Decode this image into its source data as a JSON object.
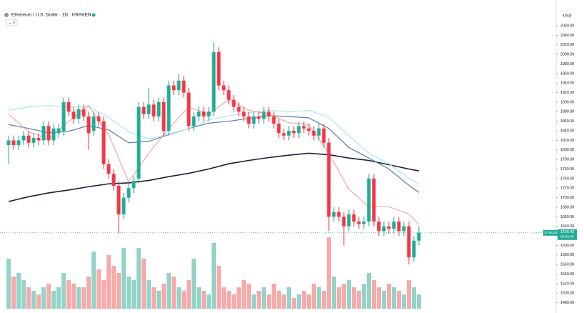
{
  "chart_data": {
    "type": "candlestick",
    "symbol": "Ethereum / U.S. Dollar · 1D · KRAKEN",
    "indicator_count": "2",
    "currency": "USD",
    "ticker": "ETHUSD",
    "countdown": "09:55:36",
    "last_price": 1626.43,
    "up_color": "#22ab94",
    "down_color": "#f23645",
    "up_volume_color": "#93d3c8",
    "down_volume_color": "#f7aaa9",
    "ylim": [
      1466,
      2084
    ],
    "yticks": [
      {
        "value": 2060,
        "label": "2060.00"
      },
      {
        "value": 2040,
        "label": "2040.00"
      },
      {
        "value": 2020,
        "label": "2020.00"
      },
      {
        "value": 2000,
        "label": "2000.00"
      },
      {
        "value": 1980,
        "label": "1980.00"
      },
      {
        "value": 1960,
        "label": "1960.00"
      },
      {
        "value": 1940,
        "label": "1940.00"
      },
      {
        "value": 1920,
        "label": "1920.00"
      },
      {
        "value": 1900,
        "label": "1900.00"
      },
      {
        "value": 1880,
        "label": "1880.00"
      },
      {
        "value": 1860,
        "label": "1860.00"
      },
      {
        "value": 1840,
        "label": "1840.00"
      },
      {
        "value": 1820,
        "label": "1820.00"
      },
      {
        "value": 1800,
        "label": "1800.00"
      },
      {
        "value": 1780,
        "label": "1780.00"
      },
      {
        "value": 1760,
        "label": "1760.00"
      },
      {
        "value": 1740,
        "label": "1740.00"
      },
      {
        "value": 1720,
        "label": "1720.00"
      },
      {
        "value": 1700,
        "label": "1700.00"
      },
      {
        "value": 1680,
        "label": "1680.00"
      },
      {
        "value": 1660,
        "label": "1660.00"
      },
      {
        "value": 1640,
        "label": "1640.00"
      },
      {
        "value": 1620,
        "label": "1620.00"
      },
      {
        "value": 1600,
        "label": "1600.00"
      },
      {
        "value": 1580,
        "label": "1580.00"
      },
      {
        "value": 1560,
        "label": "1560.00"
      },
      {
        "value": 1540,
        "label": "1540.00"
      },
      {
        "value": 1520,
        "label": "1520.00"
      },
      {
        "value": 1500,
        "label": "1500.00"
      },
      {
        "value": 1480,
        "label": "1480.00"
      }
    ],
    "open": [
      1810,
      1820,
      1810,
      1820,
      1830,
      1815,
      1825,
      1820,
      1850,
      1820,
      1835,
      1840,
      1900,
      1880,
      1865,
      1885,
      1870,
      1840,
      1870,
      1860,
      1770,
      1750,
      1725,
      1665,
      1700,
      1720,
      1740,
      1890,
      1875,
      1895,
      1870,
      1900,
      1840,
      1935,
      1925,
      1945,
      1920,
      1850,
      1870,
      1880,
      1870,
      1880,
      2005,
      1935,
      1925,
      1905,
      1890,
      1880,
      1870,
      1855,
      1870,
      1865,
      1880,
      1870,
      1855,
      1835,
      1830,
      1840,
      1835,
      1850,
      1845,
      1840,
      1830,
      1845,
      1815,
      1660,
      1670,
      1660,
      1640,
      1665,
      1650,
      1645,
      1650,
      1740,
      1650,
      1630,
      1640,
      1635,
      1650,
      1630,
      1640,
      1575,
      1610
    ],
    "high": [
      1830,
      1830,
      1830,
      1840,
      1840,
      1835,
      1835,
      1860,
      1860,
      1855,
      1855,
      1910,
      1910,
      1890,
      1895,
      1895,
      1880,
      1880,
      1880,
      1870,
      1780,
      1760,
      1735,
      1710,
      1730,
      1745,
      1900,
      1900,
      1930,
      1905,
      1910,
      1910,
      1945,
      1945,
      1960,
      1955,
      1930,
      1880,
      1890,
      1890,
      1890,
      2025,
      2015,
      1945,
      1935,
      1915,
      1900,
      1890,
      1880,
      1880,
      1880,
      1890,
      1890,
      1880,
      1865,
      1845,
      1850,
      1850,
      1860,
      1860,
      1855,
      1850,
      1855,
      1855,
      1825,
      1680,
      1680,
      1670,
      1675,
      1675,
      1660,
      1660,
      1750,
      1750,
      1660,
      1650,
      1650,
      1660,
      1660,
      1650,
      1650,
      1620,
      1640
    ],
    "low": [
      1770,
      1800,
      1800,
      1810,
      1805,
      1805,
      1810,
      1810,
      1810,
      1810,
      1825,
      1830,
      1870,
      1855,
      1855,
      1860,
      1800,
      1830,
      1850,
      1760,
      1740,
      1715,
      1625,
      1655,
      1690,
      1710,
      1730,
      1865,
      1865,
      1860,
      1860,
      1830,
      1830,
      1915,
      1915,
      1910,
      1840,
      1840,
      1860,
      1860,
      1860,
      1870,
      1925,
      1915,
      1895,
      1880,
      1870,
      1860,
      1845,
      1845,
      1855,
      1855,
      1860,
      1845,
      1825,
      1820,
      1820,
      1825,
      1825,
      1835,
      1830,
      1820,
      1820,
      1805,
      1630,
      1650,
      1650,
      1600,
      1630,
      1640,
      1635,
      1635,
      1640,
      1640,
      1620,
      1620,
      1625,
      1625,
      1620,
      1620,
      1560,
      1565,
      1600
    ],
    "close": [
      1820,
      1810,
      1820,
      1830,
      1815,
      1825,
      1820,
      1850,
      1820,
      1845,
      1845,
      1900,
      1880,
      1865,
      1885,
      1870,
      1835,
      1870,
      1860,
      1770,
      1750,
      1725,
      1665,
      1700,
      1720,
      1735,
      1890,
      1875,
      1895,
      1870,
      1900,
      1840,
      1935,
      1925,
      1945,
      1920,
      1850,
      1870,
      1880,
      1870,
      1880,
      2005,
      1935,
      1925,
      1905,
      1890,
      1880,
      1870,
      1855,
      1870,
      1865,
      1880,
      1870,
      1855,
      1835,
      1830,
      1840,
      1835,
      1850,
      1845,
      1840,
      1830,
      1845,
      1815,
      1660,
      1670,
      1660,
      1640,
      1665,
      1650,
      1645,
      1650,
      1740,
      1650,
      1630,
      1640,
      1635,
      1650,
      1630,
      1640,
      1575,
      1610,
      1626.43
    ],
    "volume": [
      70,
      45,
      50,
      40,
      30,
      25,
      20,
      30,
      35,
      25,
      30,
      50,
      40,
      35,
      30,
      30,
      45,
      80,
      55,
      40,
      75,
      60,
      50,
      85,
      45,
      40,
      85,
      70,
      40,
      30,
      25,
      35,
      50,
      45,
      30,
      25,
      40,
      70,
      30,
      25,
      20,
      92,
      60,
      30,
      25,
      20,
      30,
      40,
      35,
      20,
      25,
      30,
      20,
      35,
      25,
      20,
      30,
      15,
      20,
      25,
      20,
      35,
      30,
      25,
      100,
      45,
      30,
      35,
      40,
      30,
      25,
      35,
      50,
      40,
      30,
      25,
      35,
      30,
      25,
      20,
      40,
      30,
      20
    ],
    "ma_series": [
      {
        "color": "#1a1f3d",
        "x": [
          0,
          4,
          8,
          12,
          16,
          20,
          24,
          28,
          32,
          36,
          40,
          44,
          48,
          52,
          56,
          60,
          64,
          68,
          72,
          76,
          80,
          82
        ],
        "values": [
          1692,
          1702,
          1710,
          1716,
          1723,
          1729,
          1731,
          1736,
          1744,
          1751,
          1760,
          1771,
          1778,
          1784,
          1789,
          1793,
          1790,
          1783,
          1778,
          1769,
          1760,
          1756
        ]
      },
      {
        "color": "#5b7bb5",
        "x": [
          0,
          4,
          8,
          12,
          16,
          20,
          24,
          28,
          32,
          36,
          40,
          44,
          48,
          52,
          56,
          60,
          64,
          68,
          72,
          76,
          80,
          82
        ],
        "values": [
          1853,
          1845,
          1836,
          1839,
          1851,
          1842,
          1815,
          1818,
          1832,
          1845,
          1856,
          1860,
          1866,
          1872,
          1870,
          1867,
          1845,
          1805,
          1783,
          1760,
          1726,
          1711
        ]
      },
      {
        "color": "#a6eaf2",
        "x": [
          0,
          4,
          8,
          12,
          16,
          20,
          24,
          28,
          32,
          36,
          40,
          44,
          48,
          52,
          56,
          60,
          64,
          68,
          72,
          76,
          80,
          82
        ],
        "values": [
          1883,
          1890,
          1893,
          1890,
          1890,
          1868,
          1838,
          1823,
          1833,
          1845,
          1863,
          1871,
          1878,
          1883,
          1880,
          1883,
          1868,
          1830,
          1793,
          1771,
          1741,
          1729
        ]
      },
      {
        "color": "#f4a8a4",
        "x": [
          0,
          4,
          8,
          12,
          16,
          20,
          24,
          28,
          32,
          36,
          40,
          44,
          48,
          52,
          56,
          60,
          64,
          68,
          72,
          76,
          80,
          82
        ],
        "values": [
          1875,
          1838,
          1823,
          1860,
          1893,
          1832,
          1733,
          1793,
          1845,
          1890,
          1875,
          1905,
          1883,
          1875,
          1857,
          1853,
          1793,
          1718,
          1681,
          1681,
          1666,
          1644
        ]
      }
    ]
  }
}
